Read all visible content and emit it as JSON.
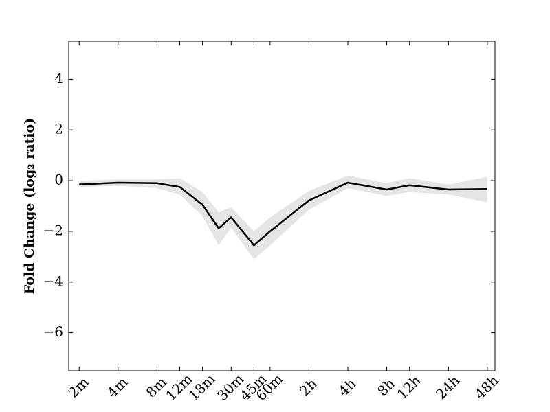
{
  "chart_data": {
    "type": "line",
    "ylabel": "Fold Change (log₂ ratio)",
    "xscale": "log",
    "x": [
      2,
      4,
      8,
      12,
      18,
      24,
      30,
      45,
      60,
      120,
      240,
      480,
      720,
      1440,
      2880
    ],
    "series": [
      {
        "color": "#000000",
        "band_color": "#e5e5e5",
        "values": [
          -0.15,
          -0.08,
          -0.1,
          -0.25,
          -0.95,
          -1.88,
          -1.45,
          -2.55,
          -2.0,
          -0.78,
          -0.08,
          -0.35,
          -0.18,
          -0.35,
          -0.33
        ],
        "lower": [
          -0.25,
          -0.2,
          -0.3,
          -0.55,
          -1.4,
          -2.55,
          -1.85,
          -3.1,
          -2.55,
          -1.15,
          -0.3,
          -0.6,
          -0.45,
          -0.55,
          -0.85
        ],
        "upper": [
          0.0,
          0.05,
          0.05,
          0.1,
          -0.45,
          -1.25,
          -1.05,
          -2.0,
          -1.45,
          -0.4,
          0.2,
          -0.1,
          0.1,
          -0.15,
          0.15
        ]
      }
    ],
    "xlim": [
      1.66,
      3300
    ],
    "ylim": [
      -7.5,
      5.5
    ],
    "xticks": [
      {
        "value": 2,
        "label": "2m"
      },
      {
        "value": 4,
        "label": "4m"
      },
      {
        "value": 8,
        "label": "8m"
      },
      {
        "value": 12,
        "label": "12m"
      },
      {
        "value": 18,
        "label": "18m"
      },
      {
        "value": 30,
        "label": "30m"
      },
      {
        "value": 45,
        "label": "45m"
      },
      {
        "value": 60,
        "label": "60m"
      },
      {
        "value": 120,
        "label": "2h"
      },
      {
        "value": 240,
        "label": "4h"
      },
      {
        "value": 480,
        "label": "8h"
      },
      {
        "value": 720,
        "label": "12h"
      },
      {
        "value": 1440,
        "label": "24h"
      },
      {
        "value": 2880,
        "label": "48h"
      }
    ],
    "yticks": [
      {
        "value": -6,
        "label": "−6"
      },
      {
        "value": -4,
        "label": "−4"
      },
      {
        "value": -2,
        "label": "−2"
      },
      0,
      2,
      4
    ],
    "grid": false
  }
}
